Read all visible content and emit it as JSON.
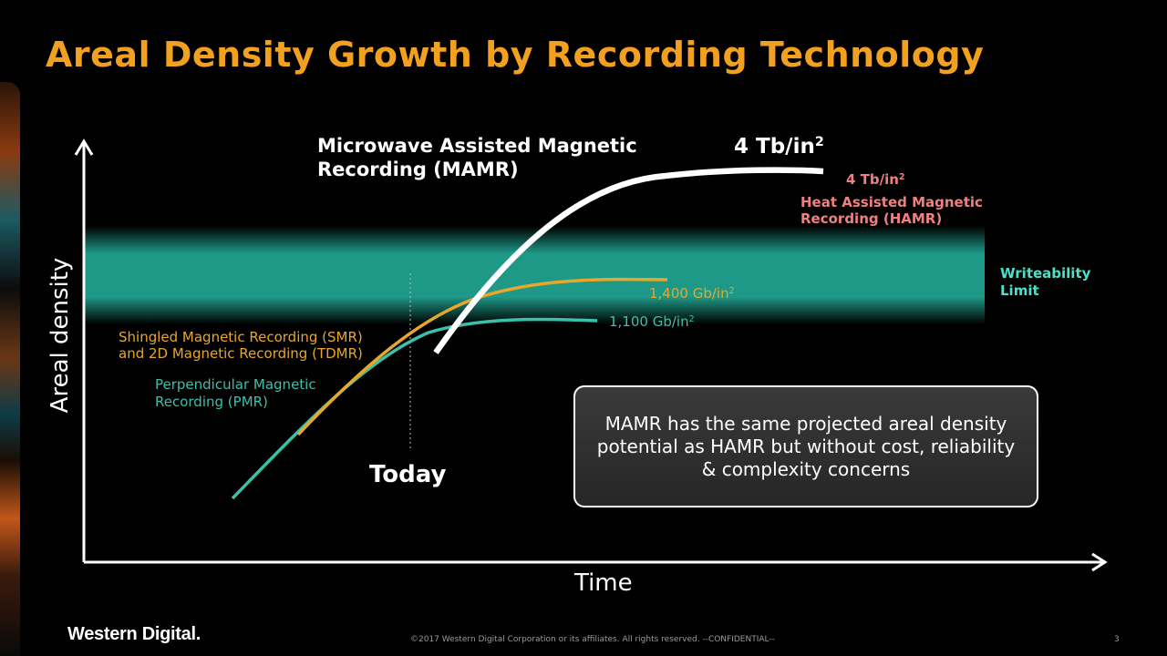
{
  "slide": {
    "title": "Areal Density Growth by Recording Technology",
    "footer": "©2017 Western Digital Corporation or its affiliates. All rights reserved. --CONFIDENTIAL--",
    "page_number": "3",
    "logo_text": "Western Digital."
  },
  "chart_data": {
    "type": "line",
    "title": "Areal Density Growth by Recording Technology",
    "xlabel": "Time",
    "ylabel": "Areal density",
    "axis_units": "qualitative (no ticks)",
    "today_label": "Today",
    "limit_band": {
      "label": "Writeability\nLimit",
      "color": "#1fa08e"
    },
    "series": [
      {
        "name": "Perpendicular Magnetic\nRecording (PMR)",
        "color": "#3cc0aa",
        "end_value_base": "1,100 Gb/in",
        "end_value_sup": "2"
      },
      {
        "name": "Shingled Magnetic Recording (SMR)\nand 2D Magnetic Recording (TDMR)",
        "color": "#e8a72a",
        "end_value_base": "1,400 Gb/in",
        "end_value_sup": "2"
      },
      {
        "name": "Microwave Assisted Magnetic\nRecording (MAMR)",
        "color": "#ffffff",
        "end_value_base": "4 Tb/in",
        "end_value_sup": "2"
      },
      {
        "name": "Heat Assisted Magnetic\nRecording (HAMR)",
        "color": "#f08080",
        "end_value_base": "4 Tb/in",
        "end_value_sup": "2"
      }
    ]
  },
  "callout": {
    "text": "MAMR has the same projected areal density potential as HAMR but without cost, reliability & complexity concerns"
  }
}
